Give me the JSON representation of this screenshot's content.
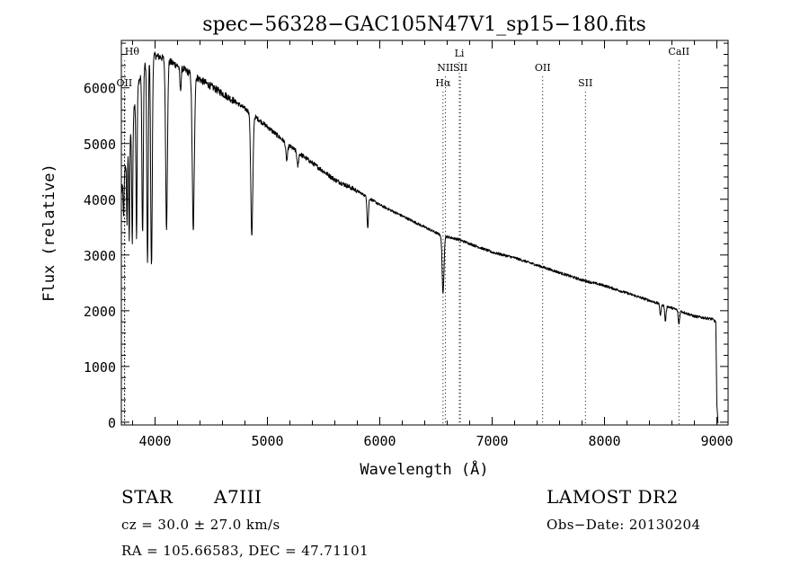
{
  "chart_data": {
    "type": "line",
    "title": "spec−56328−GAC105N47V1_sp15−180.fits",
    "xlabel": "Wavelength (Å)",
    "ylabel": "Flux (relative)",
    "xlim": [
      3700,
      9100
    ],
    "ylim": [
      -50,
      6850
    ],
    "xticks": [
      {
        "value": 4000,
        "label": "4000"
      },
      {
        "value": 5000,
        "label": "5000"
      },
      {
        "value": 6000,
        "label": "6000"
      },
      {
        "value": 7000,
        "label": "7000"
      },
      {
        "value": 8000,
        "label": "8000"
      },
      {
        "value": 9000,
        "label": "9000"
      }
    ],
    "yticks": [
      {
        "value": 0,
        "label": "0"
      },
      {
        "value": 1000,
        "label": "1000"
      },
      {
        "value": 2000,
        "label": "2000"
      },
      {
        "value": 3000,
        "label": "3000"
      },
      {
        "value": 4000,
        "label": "4000"
      },
      {
        "value": 5000,
        "label": "5000"
      },
      {
        "value": 6000,
        "label": "6000"
      }
    ],
    "continuum": [
      [
        3700,
        4100
      ],
      [
        3780,
        5200
      ],
      [
        3850,
        6100
      ],
      [
        3950,
        6600
      ],
      [
        4050,
        6550
      ],
      [
        4200,
        6400
      ],
      [
        4400,
        6150
      ],
      [
        4600,
        5900
      ],
      [
        4750,
        5700
      ],
      [
        4850,
        5550
      ],
      [
        5000,
        5300
      ],
      [
        5200,
        4950
      ],
      [
        5400,
        4650
      ],
      [
        5600,
        4350
      ],
      [
        5800,
        4150
      ],
      [
        6000,
        3900
      ],
      [
        6200,
        3700
      ],
      [
        6400,
        3500
      ],
      [
        6550,
        3350
      ],
      [
        6700,
        3280
      ],
      [
        7000,
        3050
      ],
      [
        7200,
        2950
      ],
      [
        7500,
        2750
      ],
      [
        7800,
        2550
      ],
      [
        8000,
        2450
      ],
      [
        8300,
        2250
      ],
      [
        8600,
        2050
      ],
      [
        8800,
        1900
      ],
      [
        8960,
        1850
      ],
      [
        8990,
        1800
      ],
      [
        9000,
        300
      ],
      [
        9010,
        0
      ]
    ],
    "absorption_features": [
      {
        "x": 3720,
        "depth": 700,
        "width": 4
      },
      {
        "x": 3750,
        "depth": 1200,
        "width": 4
      },
      {
        "x": 3770,
        "depth": 1800,
        "width": 4
      },
      {
        "x": 3797,
        "depth": 2200,
        "width": 5
      },
      {
        "x": 3835,
        "depth": 2600,
        "width": 5
      },
      {
        "x": 3889,
        "depth": 2900,
        "width": 6
      },
      {
        "x": 3933,
        "depth": 3700,
        "width": 6
      },
      {
        "x": 3968,
        "depth": 3800,
        "width": 7
      },
      {
        "x": 4102,
        "depth": 3000,
        "width": 8
      },
      {
        "x": 4226,
        "depth": 400,
        "width": 6
      },
      {
        "x": 4340,
        "depth": 2800,
        "width": 9
      },
      {
        "x": 4861,
        "depth": 2200,
        "width": 9
      },
      {
        "x": 5172,
        "depth": 300,
        "width": 8
      },
      {
        "x": 5270,
        "depth": 250,
        "width": 7
      },
      {
        "x": 5893,
        "depth": 550,
        "width": 6
      },
      {
        "x": 6563,
        "depth": 1050,
        "width": 8
      },
      {
        "x": 8498,
        "depth": 200,
        "width": 6
      },
      {
        "x": 8542,
        "depth": 280,
        "width": 6
      },
      {
        "x": 8662,
        "depth": 250,
        "width": 6
      }
    ],
    "noise_amplitude": 60,
    "line_markers": [
      {
        "x": 3730,
        "label": "Hθ",
        "row": 0
      },
      {
        "x": 3727,
        "label": "OII",
        "row": 3
      },
      {
        "x": 6563,
        "label": "Hα",
        "row": 3
      },
      {
        "x": 6583,
        "label": "NII",
        "row": 2
      },
      {
        "x": 6708,
        "label": "Li",
        "row": 1
      },
      {
        "x": 6717,
        "label": "SII",
        "row": 2
      },
      {
        "x": 7450,
        "label": "OII",
        "row": 2
      },
      {
        "x": 7830,
        "label": "SII",
        "row": 3
      },
      {
        "x": 8662,
        "label": "CaII",
        "row": 0
      }
    ]
  },
  "info": {
    "object_type": "STAR",
    "subclass": "A7III",
    "redshift": "cz = 30.0 ± 27.0 km/s",
    "coords": "RA = 105.66583, DEC =  47.71101",
    "survey": "LAMOST DR2",
    "obs_date": "Obs−Date: 20130204"
  }
}
